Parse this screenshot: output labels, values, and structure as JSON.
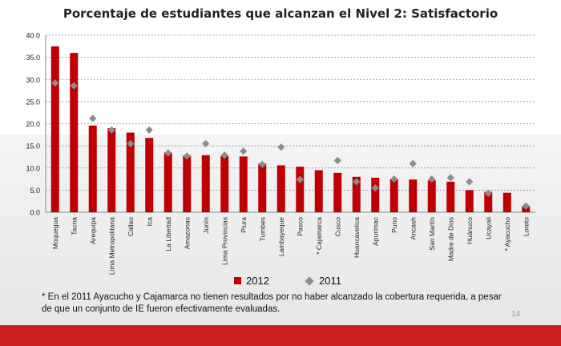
{
  "chart_data": {
    "type": "bar",
    "title": "Porcentaje de estudiantes que alcanzan el Nivel 2: Satisfactorio",
    "categories": [
      "Moquegua",
      "Tacna",
      "Arequipa",
      "Lima Metropolitana",
      "Callao",
      "Ica",
      "La Libertad",
      "Amazonas",
      "Junín",
      "Lima Provincias",
      "Piura",
      "Tumbes",
      "Lambayeque",
      "Pasco",
      "* Cajamarca",
      "Cusco",
      "Huancavelica",
      "Apurimac",
      "Puno",
      "Ancash",
      "San Martín",
      "Madre de Dios",
      "Huánuco",
      "Ucayali",
      "* Ayacucho",
      "Loreto"
    ],
    "series": [
      {
        "name": "2012",
        "type": "bar",
        "color": "#c00000",
        "values": [
          37.5,
          36.0,
          19.6,
          19.0,
          18.0,
          16.8,
          13.5,
          12.8,
          12.9,
          12.7,
          12.6,
          11.0,
          10.6,
          10.3,
          9.5,
          8.9,
          8.0,
          7.8,
          7.5,
          7.4,
          7.2,
          6.9,
          5.0,
          4.6,
          4.4,
          1.3
        ]
      },
      {
        "name": "2011",
        "type": "scatter",
        "marker": "diamond",
        "color": "#8c8c8c",
        "values": [
          29.2,
          28.6,
          21.2,
          18.6,
          15.5,
          18.6,
          13.4,
          12.7,
          15.5,
          12.9,
          13.8,
          10.8,
          14.7,
          7.4,
          null,
          11.7,
          6.9,
          5.5,
          7.5,
          11.0,
          7.5,
          7.8,
          6.9,
          4.3,
          null,
          1.4
        ]
      }
    ],
    "ylim": [
      0,
      40
    ],
    "yticks": [
      "0.0",
      "5.0",
      "10.0",
      "15.0",
      "20.0",
      "25.0",
      "30.0",
      "35.0",
      "40.0"
    ],
    "grid": true,
    "legend_position": "bottom"
  },
  "footnote": "* En el 2011 Ayacucho y Cajamarca  no tienen resultados por no haber alcanzado la cobertura requerida, a pesar de que un conjunto de IE fueron efectivamente evaluadas.",
  "page_number": "14",
  "colors": {
    "accent": "#cc1f1f",
    "bar": "#c00000",
    "marker": "#8c8c8c"
  }
}
